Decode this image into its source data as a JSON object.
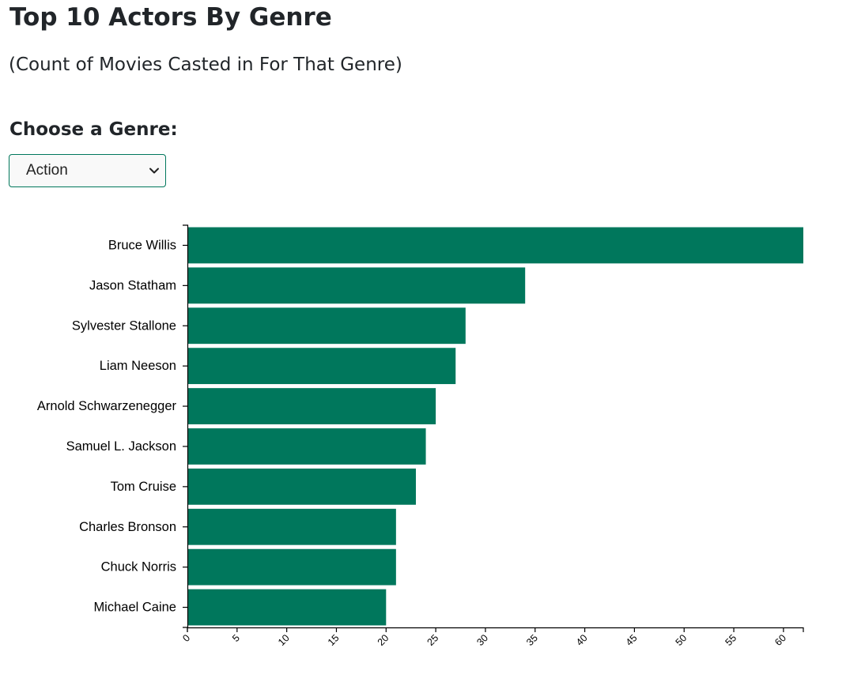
{
  "header": {
    "title": "Top 10 Actors By Genre",
    "subtitle": "(Count of Movies Casted in For That Genre)"
  },
  "genre_selector": {
    "label": "Choose a Genre:",
    "selected": "Action",
    "icon": "chevron-down-icon"
  },
  "colors": {
    "bar": "#00775c",
    "select_border": "#00775c"
  },
  "chart_data": {
    "type": "bar",
    "orientation": "horizontal",
    "categories": [
      "Bruce Willis",
      "Jason Statham",
      "Sylvester Stallone",
      "Liam Neeson",
      "Arnold Schwarzenegger",
      "Samuel L. Jackson",
      "Tom Cruise",
      "Charles Bronson",
      "Chuck Norris",
      "Michael Caine"
    ],
    "values": [
      62,
      34,
      28,
      27,
      25,
      24,
      23,
      21,
      21,
      20
    ],
    "xlim": [
      0,
      62
    ],
    "x_ticks": [
      "0",
      "5",
      "10",
      "15",
      "20",
      "25",
      "30",
      "35",
      "40",
      "45",
      "50",
      "55",
      "60"
    ],
    "grid": false,
    "legend": "none"
  }
}
